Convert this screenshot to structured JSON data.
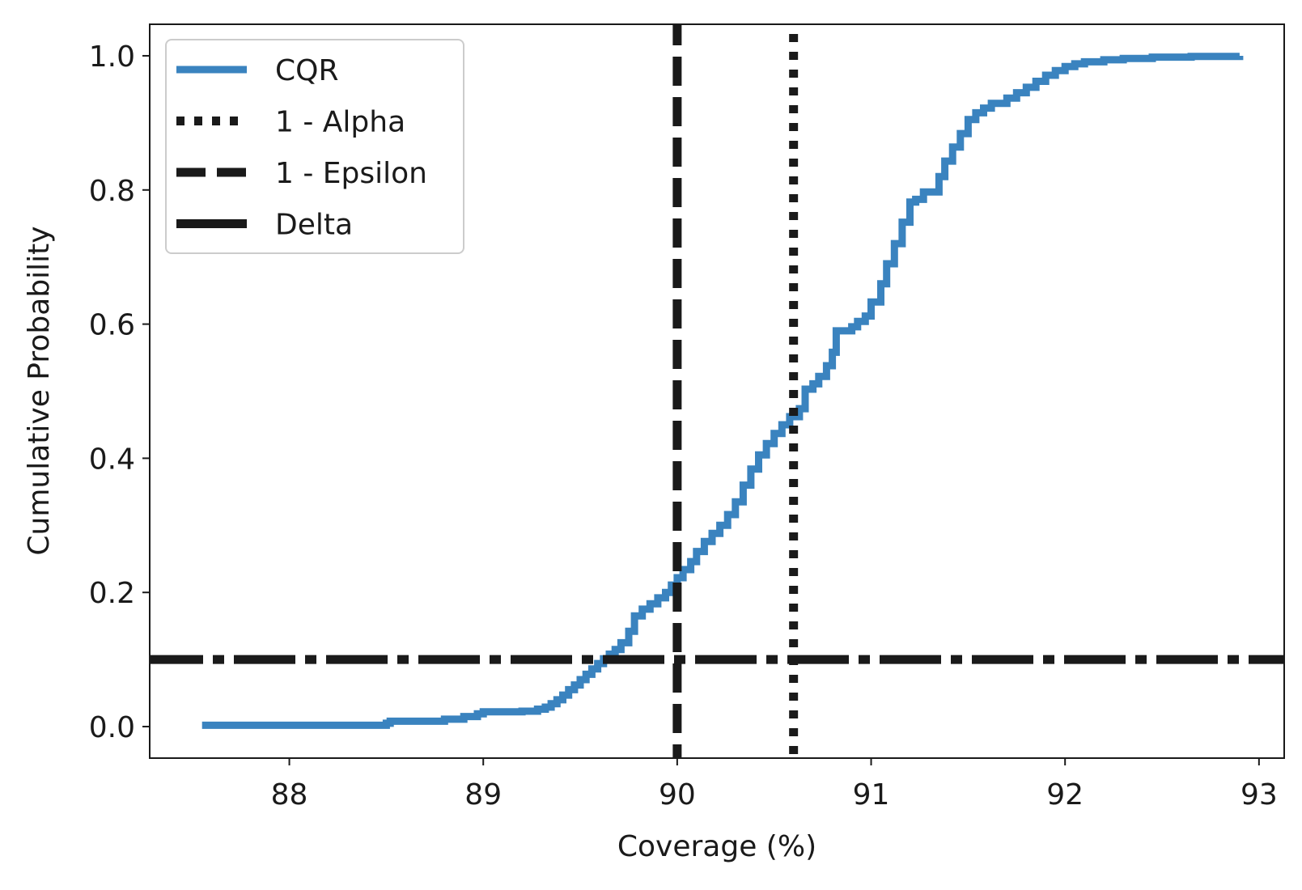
{
  "chart_data": {
    "type": "line",
    "title": "",
    "xlabel": "Coverage (%)",
    "ylabel": "Cumulative Probability",
    "xlim": [
      87.28,
      93.13
    ],
    "ylim": [
      -0.047,
      1.047
    ],
    "xticks": [
      88,
      89,
      90,
      91,
      92,
      93
    ],
    "xtick_labels": [
      "88",
      "89",
      "90",
      "91",
      "92",
      "93"
    ],
    "yticks": [
      0.0,
      0.2,
      0.4,
      0.6,
      0.8,
      1.0
    ],
    "ytick_labels": [
      "0.0",
      "0.2",
      "0.4",
      "0.6",
      "0.8",
      "1.0"
    ],
    "grid": false,
    "legend_position": "top-left",
    "series": [
      {
        "name": "CQR",
        "kind": "step-cdf",
        "color": "#3a83bf",
        "x": [
          87.55,
          88.5,
          88.52,
          88.8,
          88.9,
          88.97,
          89.0,
          89.2,
          89.28,
          89.32,
          89.35,
          89.38,
          89.41,
          89.44,
          89.47,
          89.5,
          89.53,
          89.56,
          89.59,
          89.62,
          89.65,
          89.68,
          89.71,
          89.75,
          89.78,
          89.82,
          89.86,
          89.9,
          89.94,
          89.97,
          90.0,
          90.03,
          90.07,
          90.1,
          90.14,
          90.18,
          90.22,
          90.26,
          90.3,
          90.34,
          90.38,
          90.42,
          90.46,
          90.5,
          90.54,
          90.58,
          90.63,
          90.66,
          90.7,
          90.73,
          90.77,
          90.8,
          90.82,
          90.9,
          90.93,
          90.97,
          91.0,
          91.05,
          91.08,
          91.12,
          91.16,
          91.2,
          91.23,
          91.27,
          91.35,
          91.38,
          91.42,
          91.46,
          91.5,
          91.54,
          91.58,
          91.62,
          91.7,
          91.75,
          91.8,
          91.85,
          91.9,
          91.95,
          92.0,
          92.05,
          92.1,
          92.2,
          92.3,
          92.45,
          92.65,
          92.9
        ],
        "y": [
          0.002,
          0.005,
          0.008,
          0.011,
          0.015,
          0.019,
          0.022,
          0.023,
          0.026,
          0.029,
          0.034,
          0.04,
          0.047,
          0.055,
          0.062,
          0.07,
          0.078,
          0.086,
          0.094,
          0.101,
          0.108,
          0.115,
          0.125,
          0.142,
          0.165,
          0.175,
          0.183,
          0.192,
          0.2,
          0.211,
          0.222,
          0.234,
          0.246,
          0.261,
          0.276,
          0.288,
          0.3,
          0.316,
          0.335,
          0.36,
          0.384,
          0.405,
          0.422,
          0.437,
          0.45,
          0.462,
          0.474,
          0.503,
          0.511,
          0.522,
          0.538,
          0.558,
          0.59,
          0.596,
          0.604,
          0.612,
          0.633,
          0.66,
          0.69,
          0.72,
          0.752,
          0.782,
          0.786,
          0.797,
          0.82,
          0.843,
          0.864,
          0.884,
          0.905,
          0.915,
          0.922,
          0.929,
          0.937,
          0.945,
          0.953,
          0.962,
          0.971,
          0.978,
          0.984,
          0.988,
          0.991,
          0.994,
          0.996,
          0.998,
          0.999,
          1.0
        ]
      },
      {
        "name": "1 - Alpha",
        "kind": "vline",
        "value": 90.6,
        "color": "#1a1a1a",
        "dash": "dotted"
      },
      {
        "name": "1 - Epsilon",
        "kind": "vline",
        "value": 90.0,
        "color": "#1a1a1a",
        "dash": "dashed"
      },
      {
        "name": "Delta",
        "kind": "hline",
        "value": 0.1,
        "color": "#1a1a1a",
        "dash": "dashdot"
      }
    ]
  }
}
